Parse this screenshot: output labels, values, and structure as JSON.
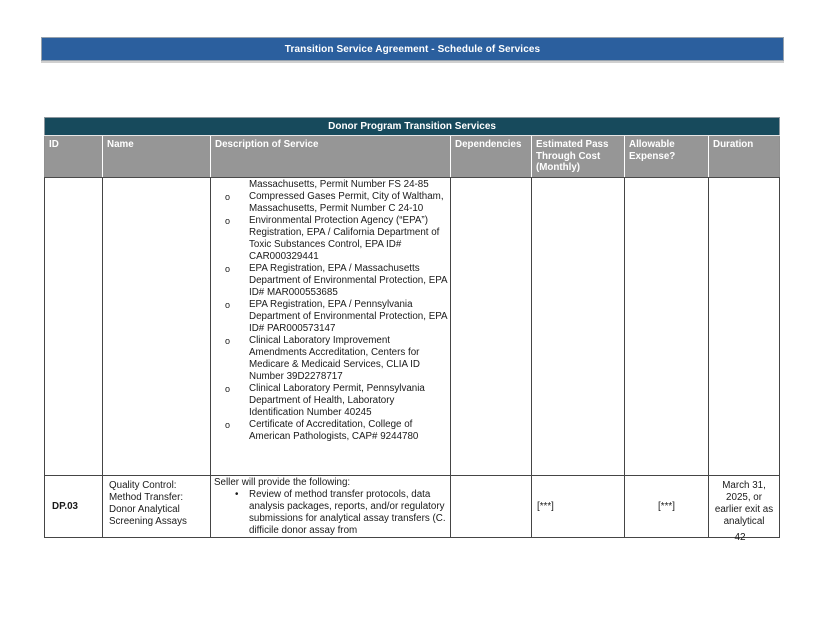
{
  "document": {
    "title": "Transition Service Agreement - Schedule of Services",
    "page_number": "42"
  },
  "colors": {
    "title_bar_bg": "#2B5F9E",
    "table_title_bg": "#174A5C",
    "header_row_bg": "#969696",
    "header_text": "#FFFFFF"
  },
  "table": {
    "title": "Donor Program Transition Services",
    "columns": [
      "ID",
      "Name",
      "Description of Service",
      "Dependencies",
      "Estimated Pass Through Cost (Monthly)",
      "Allowable Expense?",
      "Duration"
    ],
    "bullet_glyphs": {
      "o": "o",
      "bullet": "•"
    },
    "rows": [
      {
        "id": "",
        "name": "",
        "description": [
          {
            "style": "continuation",
            "text": "Massachusetts, Permit Number FS 24-85"
          },
          {
            "style": "o",
            "text": "Compressed Gases Permit, City of Waltham, Massachusetts, Permit Number C 24-10"
          },
          {
            "style": "o",
            "text": "Environmental Protection Agency (“EPA”) Registration, EPA / California Department of Toxic Substances Control, EPA ID# CAR000329441"
          },
          {
            "style": "o",
            "text": "EPA Registration, EPA / Massachusetts Department of Environmental Protection, EPA ID# MAR000553685"
          },
          {
            "style": "o",
            "text": "EPA Registration, EPA / Pennsylvania Department of Environmental Protection, EPA ID# PAR000573147"
          },
          {
            "style": "o",
            "text": "Clinical Laboratory Improvement Amendments Accreditation, Centers for Medicare & Medicaid Services, CLIA ID Number 39D2278717"
          },
          {
            "style": "o",
            "text": "Clinical Laboratory Permit, Pennsylvania Department of Health, Laboratory Identification Number 40245"
          },
          {
            "style": "o",
            "text": "Certificate of Accreditation, College of American Pathologists, CAP# 9244780"
          }
        ],
        "dependencies": "",
        "estimated_cost": "",
        "allowable_expense": "",
        "duration": ""
      },
      {
        "id": "DP.03",
        "name": "Quality Control: Method Transfer: Donor Analytical Screening Assays",
        "description": [
          {
            "style": "plain",
            "text": "Seller will provide the following:"
          },
          {
            "style": "bullet",
            "text": "Review of method transfer protocols, data analysis packages, reports, and/or regulatory submissions for analytical assay transfers (C. difficile donor assay from"
          }
        ],
        "dependencies": "",
        "estimated_cost": "[***]",
        "allowable_expense": "[***]",
        "duration": "March 31, 2025, or earlier exit as analytical"
      }
    ]
  }
}
